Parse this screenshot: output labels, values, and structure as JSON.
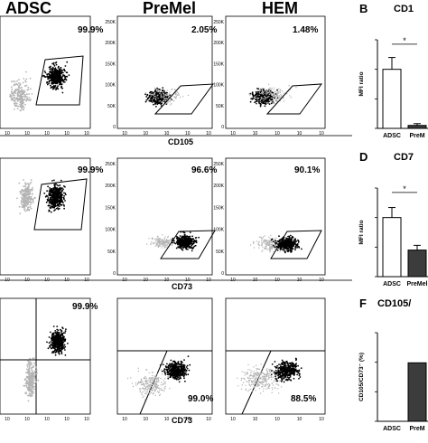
{
  "columns": [
    "ADSC",
    "PreMel",
    "HEM"
  ],
  "panel_letters": {
    "B": "B",
    "D": "D",
    "F": "F"
  },
  "panel_titles": {
    "B": "CD1",
    "D": "CD7",
    "F": "CD105/"
  },
  "row_axis_labels": [
    "CD105",
    "CD73",
    "CD73"
  ],
  "percentages": [
    [
      "99.9%",
      "2.05%",
      "1.48%"
    ],
    [
      "99.9%",
      "96.6%",
      "90.1%"
    ],
    [
      "99.9%",
      "99.0%",
      "88.5%"
    ]
  ],
  "y_ticks": [
    "250K",
    "200K",
    "150K",
    "100K",
    "50K",
    "0"
  ],
  "x_ticks_exp": [
    "10",
    "10",
    "10",
    "10",
    "10"
  ],
  "significance": "*",
  "colors": {
    "adsc_bar": "#ffffff",
    "premel_bar": "#3c3c3c",
    "gate": "#000000",
    "control": "#b4b4b4",
    "sample": "#000000"
  },
  "chart_data": [
    {
      "type": "bar",
      "panel": "B",
      "title": "CD1",
      "ylabel": "MFI ratio",
      "categories": [
        "ADSC",
        "PreM"
      ],
      "values": [
        1.0,
        0.05
      ],
      "errors": [
        0.2,
        0.03
      ],
      "ylim": [
        0,
        1.5
      ],
      "yticks": [
        "0.0",
        "0.5",
        "1.0",
        "1.5"
      ]
    },
    {
      "type": "bar",
      "panel": "D",
      "title": "CD7",
      "ylabel": "MFI ratio",
      "categories": [
        "ADSC",
        "PreMel"
      ],
      "values": [
        1.0,
        0.45
      ],
      "errors": [
        0.17,
        0.08
      ],
      "ylim": [
        0,
        1.5
      ],
      "yticks": [
        "0.0",
        "0.5",
        "1.0",
        "1.5"
      ]
    },
    {
      "type": "bar",
      "panel": "F",
      "title": "CD105/",
      "ylabel": "CD105/CD73⁻ (%)",
      "categories": [
        "ADSC",
        "PreM"
      ],
      "values": [
        0,
        99
      ],
      "ylim": [
        0,
        150
      ],
      "yticks": [
        "0",
        "50",
        "100",
        "150"
      ]
    }
  ]
}
